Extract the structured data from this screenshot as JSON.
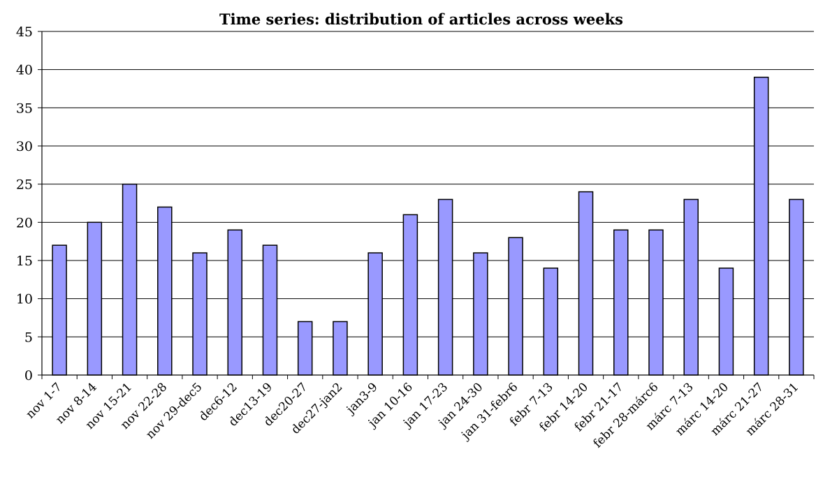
{
  "chart_data": {
    "type": "bar",
    "title": "Time series: distribution of articles across weeks",
    "xlabel": "",
    "ylabel": "",
    "ylim": [
      0,
      45
    ],
    "yticks": [
      0,
      5,
      10,
      15,
      20,
      25,
      30,
      35,
      40,
      45
    ],
    "grid": true,
    "legend": "none",
    "colors": {
      "bar_fill": "#9999ff",
      "bar_stroke": "#000000",
      "grid": "#000000"
    },
    "categories": [
      "nov 1-7",
      "nov 8-14",
      "nov 15-21",
      "nov 22-28",
      "nov 29-dec5",
      "dec6-12",
      "dec13-19",
      "dec20-27",
      "dec27-jan2",
      "jan3-9",
      "jan 10-16",
      "jan 17-23",
      "jan 24-30",
      "jan 31-febr6",
      "febr 7-13",
      "febr 14-20",
      "febr 21-17",
      "febr 28-márc6",
      "márc 7-13",
      "márc 14-20",
      "márc 21-27",
      "márc 28-31"
    ],
    "values": [
      17,
      20,
      25,
      22,
      16,
      19,
      17,
      7,
      7,
      16,
      21,
      23,
      16,
      18,
      14,
      24,
      19,
      19,
      23,
      14,
      39,
      23
    ]
  }
}
